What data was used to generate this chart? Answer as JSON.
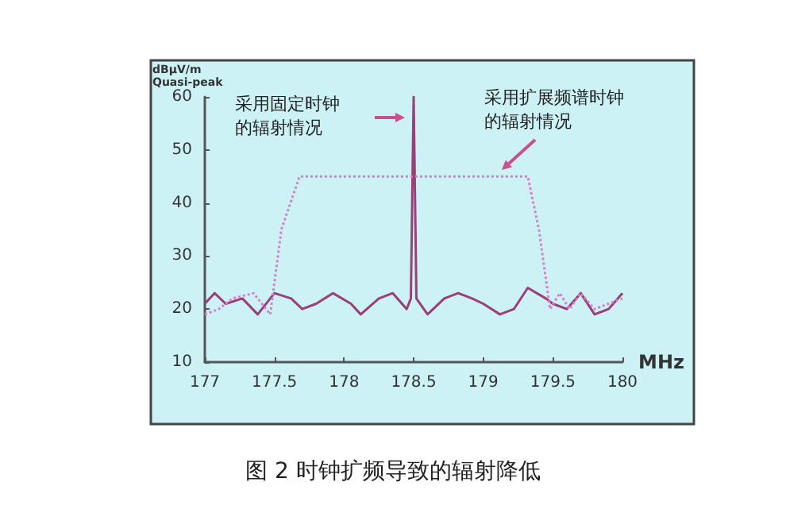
{
  "chart_data": {
    "type": "line",
    "title": "图 2 时钟扩频导致的辐射降低",
    "xlabel": "MHz",
    "ylabel": "dBμV/m\nQuasi-peak",
    "annotations": [
      "采用固定时钟的辐射情况",
      "采用扩展频谱时钟的辐射情况"
    ],
    "xlim": [
      177,
      180
    ],
    "xticks": [
      177,
      177.5,
      178,
      178.5,
      179,
      179.5,
      180
    ],
    "ylim": [
      10,
      60
    ],
    "yticks": [
      10,
      20,
      30,
      40,
      50,
      60
    ],
    "grid": false,
    "marker": "none",
    "series": [
      {
        "color": "#9a3f78",
        "line_style": "solid",
        "x": [
          177,
          177.07,
          177.15,
          177.27,
          177.38,
          177.5,
          177.62,
          177.7,
          177.8,
          177.92,
          178.05,
          178.12,
          178.25,
          178.35,
          178.45,
          178.48,
          178.5,
          178.52,
          178.6,
          178.72,
          178.82,
          178.92,
          179,
          179.12,
          179.22,
          179.32,
          179.45,
          179.5,
          179.6,
          179.7,
          179.8,
          179.9,
          180
        ],
        "values": [
          21,
          23,
          21,
          22,
          19,
          23,
          22,
          20,
          21,
          23,
          21,
          19,
          22,
          23,
          20,
          22,
          60,
          22,
          19,
          22,
          23,
          22,
          21,
          19,
          20,
          24,
          22,
          21,
          20,
          23,
          19,
          20,
          23
        ]
      },
      {
        "color": "#d77fc8",
        "line_style": "dotted",
        "x": [
          177,
          177.1,
          177.2,
          177.35,
          177.47,
          177.55,
          177.68,
          179.32,
          179.4,
          179.48,
          179.55,
          179.62,
          179.7,
          179.8,
          179.9,
          180
        ],
        "values": [
          19,
          20,
          22,
          23,
          19,
          35,
          45,
          45,
          35,
          20,
          23,
          20,
          23,
          20,
          21,
          22
        ]
      }
    ]
  }
}
